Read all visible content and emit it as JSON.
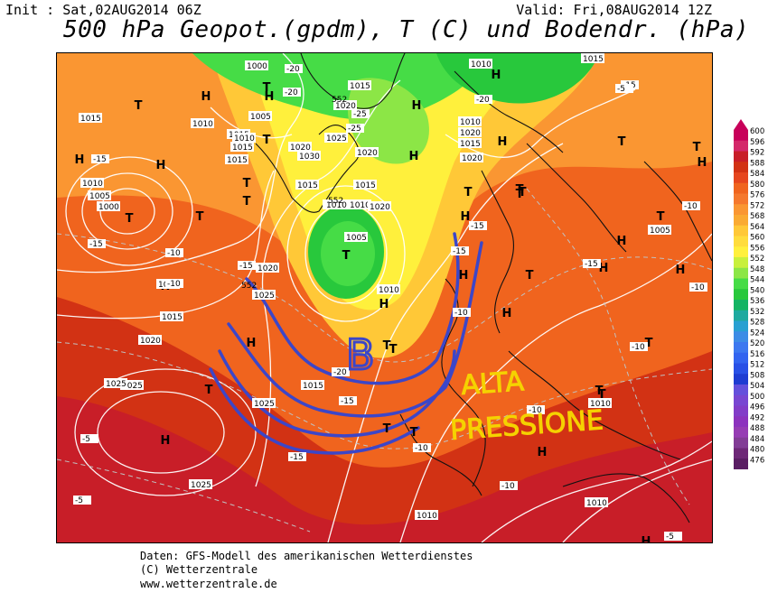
{
  "header": {
    "init": "Init : Sat,02AUG2014 06Z",
    "valid": "Valid: Fri,08AUG2014 12Z",
    "title": "500 hPa Geopot.(gpdm), T (C) und Bodendr. (hPa)"
  },
  "legend": {
    "values": [
      "600",
      "596",
      "592",
      "588",
      "584",
      "580",
      "576",
      "572",
      "568",
      "564",
      "560",
      "556",
      "552",
      "548",
      "544",
      "540",
      "536",
      "532",
      "528",
      "524",
      "520",
      "516",
      "512",
      "508",
      "504",
      "500",
      "496",
      "492",
      "488",
      "484",
      "480",
      "476"
    ],
    "colors": [
      "#c8005a",
      "#d4286a",
      "#c81e28",
      "#d23214",
      "#e6461e",
      "#f0641e",
      "#f5782d",
      "#fa9632",
      "#faaa32",
      "#ffc837",
      "#ffdc3c",
      "#fff03c",
      "#c8f03c",
      "#8ce646",
      "#46dc46",
      "#28c83c",
      "#14b464",
      "#1eaaa0",
      "#28a0d2",
      "#3c8ce6",
      "#3c78f0",
      "#3264f0",
      "#2850e6",
      "#1e3cd2",
      "#6450dc",
      "#7846d2",
      "#823cc8",
      "#8c32be",
      "#963cb4",
      "#823c96",
      "#6e2878",
      "#5a1e64"
    ]
  },
  "map": {
    "highs": [
      "H",
      "H",
      "H",
      "H",
      "H",
      "H",
      "H",
      "H",
      "H",
      "H",
      "H",
      "H",
      "H",
      "H",
      "H",
      "H",
      "H",
      "H",
      "H",
      "H",
      "H"
    ],
    "lows": [
      "T",
      "T",
      "T",
      "T",
      "T",
      "T",
      "T",
      "T",
      "T",
      "T",
      "T",
      "T",
      "T",
      "T",
      "T",
      "T",
      "T",
      "T",
      "T",
      "T",
      "T",
      "T",
      "T",
      "T",
      "T"
    ],
    "isobar_labels": [
      "1000",
      "1005",
      "1010",
      "1015",
      "1020",
      "1025",
      "1015",
      "1010",
      "1005",
      "1000",
      "1010",
      "1015",
      "1020",
      "1025",
      "1020",
      "1015",
      "1010",
      "1010",
      "1015",
      "1020",
      "1010",
      "1015",
      "1020",
      "1025",
      "1010",
      "1015",
      "1020",
      "1025",
      "1030",
      "1020",
      "1015",
      "1010",
      "1005",
      "1010",
      "1015",
      "1020",
      "1010",
      "1010",
      "1005",
      "1010",
      "1015",
      "1025",
      "1025",
      "1010",
      "1015"
    ],
    "temp_labels": [
      "-20",
      "-25",
      "-25",
      "-20",
      "-15",
      "-20",
      "-15",
      "-10",
      "-15",
      "-10",
      "-15",
      "-15",
      "-20",
      "-15",
      "-10",
      "-5",
      "-5",
      "-10",
      "-10",
      "-15",
      "-10",
      "-15",
      "-10",
      "-15",
      "-10",
      "-5",
      "-10",
      "-5"
    ],
    "geopot_labels": [
      "552",
      "552",
      "552"
    ],
    "annotation_b": "B",
    "annotation_text_line1": "ALTA",
    "annotation_text_line2": "PRESSIONE"
  },
  "footer": {
    "line1": "Daten: GFS-Modell des amerikanischen Wetterdienstes",
    "line2": "(C) Wetterzentrale",
    "line3": "www.wetterzentrale.de"
  }
}
